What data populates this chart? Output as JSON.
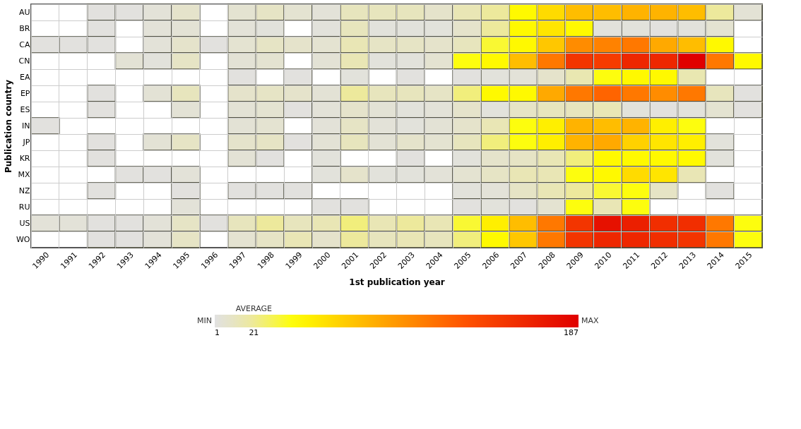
{
  "chart_data": {
    "type": "heatmap",
    "xlabel": "1st publication year",
    "ylabel": "Publication country",
    "categories": [
      "1990",
      "1991",
      "1992",
      "1993",
      "1994",
      "1995",
      "1996",
      "1997",
      "1998",
      "1999",
      "2000",
      "2001",
      "2002",
      "2003",
      "2004",
      "2005",
      "2006",
      "2007",
      "2008",
      "2009",
      "2010",
      "2011",
      "2012",
      "2013",
      "2014",
      "2015"
    ],
    "y_categories": [
      "AU",
      "BR",
      "CA",
      "CN",
      "EA",
      "EP",
      "ES",
      "IN",
      "JP",
      "KR",
      "MX",
      "NZ",
      "RU",
      "US",
      "WO"
    ],
    "cells": [
      [
        null,
        null,
        2,
        2,
        4,
        8,
        null,
        6,
        10,
        6,
        4,
        12,
        12,
        12,
        8,
        14,
        20,
        45,
        60,
        75,
        75,
        80,
        80,
        75,
        20,
        5
      ],
      [
        null,
        null,
        2,
        null,
        4,
        5,
        null,
        4,
        3,
        null,
        3,
        12,
        3,
        3,
        3,
        8,
        20,
        45,
        55,
        45,
        3,
        3,
        2,
        3,
        6,
        null
      ],
      [
        2,
        2,
        2,
        null,
        4,
        8,
        2,
        6,
        10,
        8,
        6,
        14,
        10,
        10,
        8,
        12,
        35,
        45,
        70,
        100,
        105,
        110,
        85,
        75,
        45,
        null
      ],
      [
        null,
        null,
        null,
        5,
        3,
        10,
        null,
        5,
        6,
        null,
        5,
        14,
        3,
        3,
        6,
        40,
        45,
        75,
        110,
        150,
        145,
        160,
        160,
        187,
        110,
        45
      ],
      [
        null,
        null,
        null,
        null,
        null,
        null,
        null,
        2,
        null,
        2,
        null,
        3,
        null,
        2,
        null,
        2,
        3,
        4,
        8,
        15,
        40,
        45,
        45,
        15,
        null,
        null
      ],
      [
        null,
        null,
        2,
        null,
        5,
        12,
        null,
        8,
        10,
        8,
        5,
        20,
        12,
        12,
        10,
        25,
        45,
        45,
        85,
        110,
        120,
        110,
        100,
        110,
        12,
        2
      ],
      [
        null,
        null,
        2,
        null,
        null,
        5,
        null,
        5,
        6,
        2,
        4,
        8,
        5,
        3,
        4,
        8,
        3,
        10,
        12,
        12,
        14,
        3,
        2,
        3,
        6,
        2
      ],
      [
        2,
        null,
        null,
        null,
        null,
        null,
        null,
        5,
        6,
        null,
        4,
        10,
        4,
        3,
        5,
        8,
        14,
        40,
        50,
        80,
        75,
        80,
        50,
        40,
        null,
        null
      ],
      [
        null,
        null,
        2,
        null,
        5,
        10,
        null,
        8,
        10,
        2,
        5,
        12,
        5,
        8,
        6,
        12,
        25,
        40,
        50,
        80,
        85,
        65,
        55,
        50,
        3,
        null
      ],
      [
        null,
        null,
        2,
        null,
        null,
        null,
        null,
        5,
        2,
        null,
        3,
        null,
        null,
        2,
        null,
        3,
        8,
        10,
        14,
        25,
        45,
        45,
        45,
        45,
        3,
        null
      ],
      [
        null,
        null,
        null,
        2,
        2,
        4,
        null,
        null,
        null,
        null,
        3,
        8,
        3,
        3,
        4,
        6,
        10,
        14,
        14,
        40,
        45,
        60,
        55,
        14,
        null,
        null
      ],
      [
        null,
        null,
        2,
        null,
        null,
        2,
        null,
        2,
        2,
        2,
        null,
        null,
        null,
        null,
        null,
        3,
        4,
        10,
        14,
        20,
        35,
        40,
        10,
        null,
        2,
        null
      ],
      [
        null,
        null,
        null,
        null,
        null,
        4,
        null,
        null,
        null,
        null,
        2,
        2,
        null,
        null,
        null,
        2,
        3,
        2,
        6,
        40,
        14,
        40,
        null,
        null,
        null,
        null
      ],
      [
        4,
        4,
        2,
        2,
        4,
        10,
        2,
        12,
        20,
        12,
        14,
        25,
        14,
        20,
        14,
        35,
        50,
        75,
        110,
        150,
        175,
        165,
        155,
        155,
        110,
        40
      ],
      [
        null,
        null,
        2,
        2,
        4,
        10,
        null,
        6,
        10,
        14,
        8,
        20,
        12,
        14,
        12,
        25,
        45,
        70,
        110,
        150,
        160,
        160,
        155,
        150,
        110,
        40
      ]
    ],
    "clim": [
      1,
      187
    ],
    "cticks": [
      1,
      21,
      187
    ],
    "grid": true,
    "annotations": [
      "MIN",
      "AVERAGE",
      "MAX"
    ]
  }
}
